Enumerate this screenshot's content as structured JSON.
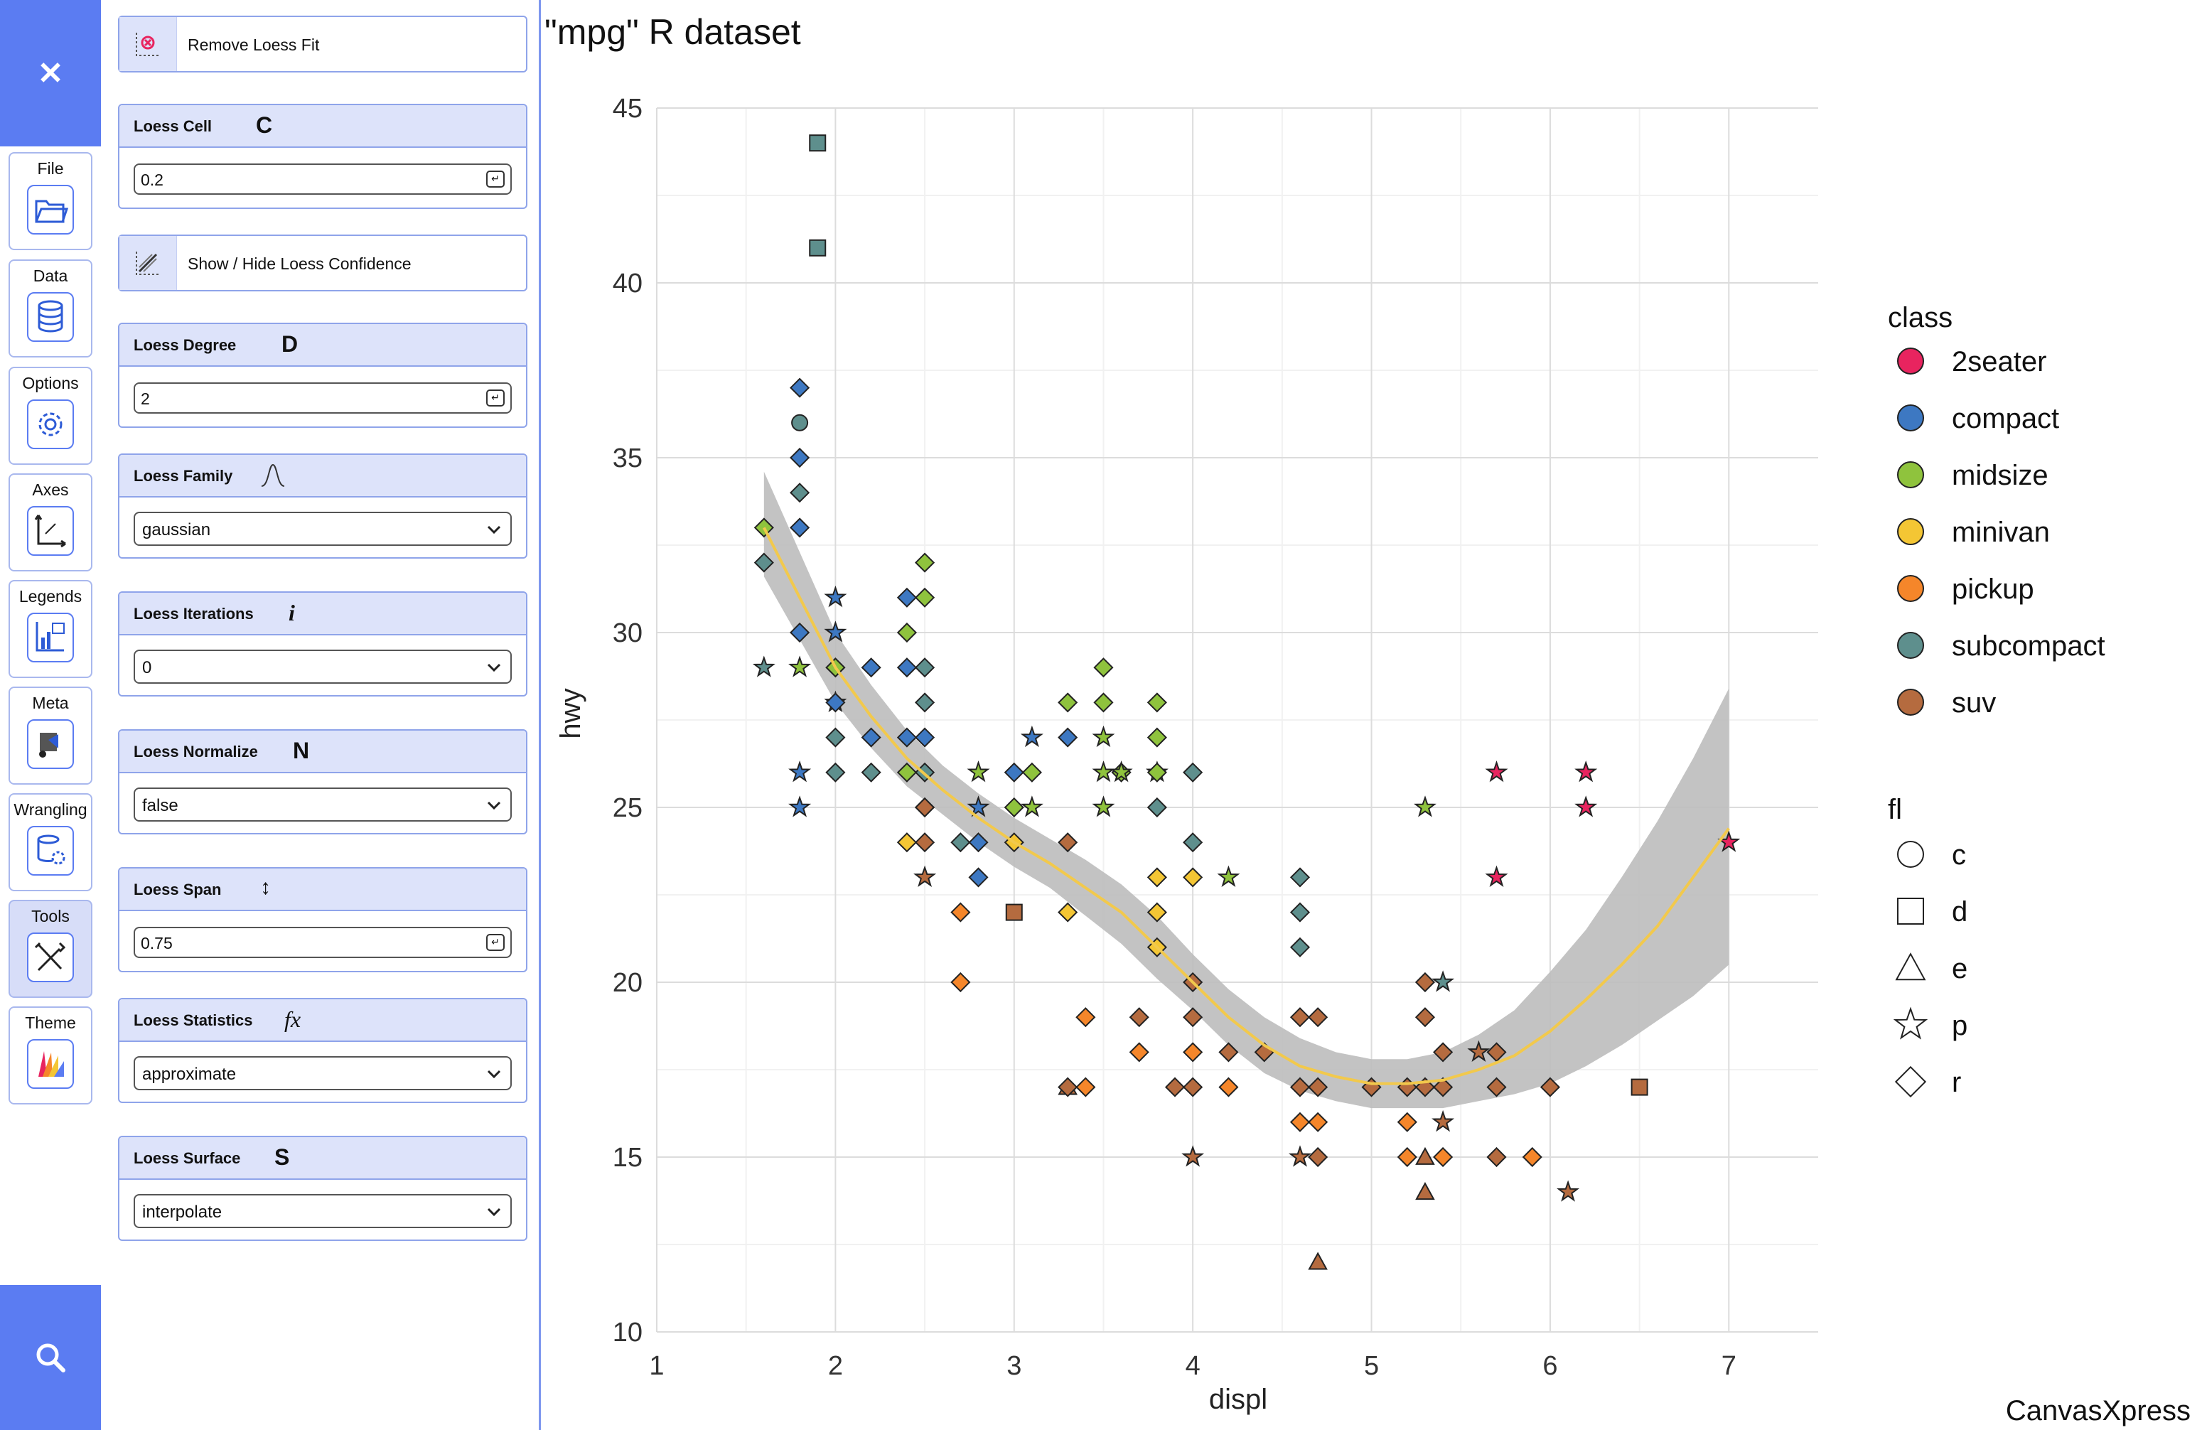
{
  "sidebar": {
    "close_icon": "close-icon",
    "search_icon": "search-icon",
    "items": [
      {
        "label": "File",
        "icon": "folder-icon",
        "active": false
      },
      {
        "label": "Data",
        "icon": "database-icon",
        "active": false
      },
      {
        "label": "Options",
        "icon": "gear-icon",
        "active": false
      },
      {
        "label": "Axes",
        "icon": "axes-icon",
        "active": false
      },
      {
        "label": "Legends",
        "icon": "legend-icon",
        "active": false
      },
      {
        "label": "Meta",
        "icon": "meta-icon",
        "active": false
      },
      {
        "label": "Wrangling",
        "icon": "wrangling-icon",
        "active": false
      },
      {
        "label": "Tools",
        "icon": "tools-icon",
        "active": true
      },
      {
        "label": "Theme",
        "icon": "theme-icon",
        "active": false
      }
    ]
  },
  "panel": {
    "remove_loess": "Remove Loess Fit",
    "show_hide_confidence": "Show / Hide Loess Confidence",
    "loess_cell": {
      "title": "Loess Cell",
      "glyph": "C",
      "value": "0.2"
    },
    "loess_degree": {
      "title": "Loess Degree",
      "glyph": "D",
      "value": "2"
    },
    "loess_family": {
      "title": "Loess Family",
      "value": "gaussian"
    },
    "loess_iterations": {
      "title": "Loess Iterations",
      "glyph": "i",
      "value": "0"
    },
    "loess_normalize": {
      "title": "Loess Normalize",
      "glyph": "N",
      "value": "false"
    },
    "loess_span": {
      "title": "Loess Span",
      "glyph": "↕",
      "value": "0.75"
    },
    "loess_statistics": {
      "title": "Loess Statistics",
      "glyph": "fx",
      "value": "approximate"
    },
    "loess_surface": {
      "title": "Loess Surface",
      "glyph": "S",
      "value": "interpolate"
    }
  },
  "chart_data": {
    "type": "scatter",
    "title": "\"mpg\" R dataset",
    "xlabel": "displ",
    "ylabel": "hwy",
    "xlim": [
      1,
      7.5
    ],
    "ylim": [
      10,
      45
    ],
    "xticks": [
      1,
      2,
      3,
      4,
      5,
      6,
      7
    ],
    "yticks": [
      10,
      15,
      20,
      25,
      30,
      35,
      40,
      45
    ],
    "grid": true,
    "watermark": "CanvasXpress",
    "legend_class_title": "class",
    "legend_fl_title": "fl",
    "classes": [
      {
        "name": "2seater",
        "color": "#e8245f"
      },
      {
        "name": "compact",
        "color": "#3d78c2"
      },
      {
        "name": "midsize",
        "color": "#8fc33d"
      },
      {
        "name": "minivan",
        "color": "#f4c634"
      },
      {
        "name": "pickup",
        "color": "#f5862a"
      },
      {
        "name": "subcompact",
        "color": "#5e8f8d"
      },
      {
        "name": "suv",
        "color": "#b56b3f"
      }
    ],
    "fuel_types": [
      {
        "name": "c",
        "shape": "circle"
      },
      {
        "name": "d",
        "shape": "square"
      },
      {
        "name": "e",
        "shape": "triangle"
      },
      {
        "name": "p",
        "shape": "star"
      },
      {
        "name": "r",
        "shape": "diamond"
      }
    ],
    "loess": {
      "color": "#f2c94c",
      "band_color": "#bdbdbd",
      "x": [
        1.6,
        1.8,
        2.0,
        2.2,
        2.4,
        2.6,
        2.8,
        3.0,
        3.2,
        3.4,
        3.6,
        3.8,
        4.0,
        4.2,
        4.4,
        4.6,
        4.8,
        5.0,
        5.2,
        5.4,
        5.6,
        5.8,
        6.0,
        6.2,
        6.4,
        6.6,
        6.8,
        7.0
      ],
      "y": [
        33.0,
        31.0,
        29.0,
        27.6,
        26.4,
        25.5,
        24.7,
        24.0,
        23.4,
        22.7,
        22.0,
        21.0,
        20.0,
        19.0,
        18.2,
        17.6,
        17.3,
        17.1,
        17.1,
        17.2,
        17.5,
        17.9,
        18.6,
        19.5,
        20.5,
        21.6,
        23.0,
        24.4
      ],
      "upper": [
        34.6,
        32.3,
        30.0,
        28.5,
        27.2,
        26.2,
        25.4,
        24.7,
        24.1,
        23.5,
        22.8,
        21.9,
        20.8,
        19.8,
        19.0,
        18.4,
        18.0,
        17.8,
        17.8,
        18.0,
        18.5,
        19.2,
        20.3,
        21.5,
        23.0,
        24.6,
        26.4,
        28.4
      ],
      "lower": [
        31.6,
        29.8,
        28.0,
        26.7,
        25.6,
        24.8,
        24.0,
        23.3,
        22.7,
        21.9,
        21.1,
        20.1,
        19.2,
        18.2,
        17.4,
        16.9,
        16.6,
        16.4,
        16.4,
        16.4,
        16.6,
        16.8,
        17.1,
        17.6,
        18.2,
        18.9,
        19.6,
        20.5
      ]
    },
    "points": [
      {
        "x": 1.9,
        "y": 44,
        "class": "subcompact",
        "fl": "d"
      },
      {
        "x": 1.9,
        "y": 41,
        "class": "subcompact",
        "fl": "d"
      },
      {
        "x": 1.8,
        "y": 37,
        "class": "compact",
        "fl": "r"
      },
      {
        "x": 1.8,
        "y": 36,
        "class": "subcompact",
        "fl": "c"
      },
      {
        "x": 1.8,
        "y": 35,
        "class": "compact",
        "fl": "r"
      },
      {
        "x": 1.8,
        "y": 34,
        "class": "subcompact",
        "fl": "r"
      },
      {
        "x": 1.8,
        "y": 33,
        "class": "compact",
        "fl": "r"
      },
      {
        "x": 1.6,
        "y": 33,
        "class": "midsize",
        "fl": "r"
      },
      {
        "x": 1.6,
        "y": 32,
        "class": "subcompact",
        "fl": "r"
      },
      {
        "x": 1.6,
        "y": 29,
        "class": "subcompact",
        "fl": "p"
      },
      {
        "x": 1.8,
        "y": 29,
        "class": "midsize",
        "fl": "p"
      },
      {
        "x": 1.8,
        "y": 30,
        "class": "compact",
        "fl": "r"
      },
      {
        "x": 1.8,
        "y": 26,
        "class": "compact",
        "fl": "p"
      },
      {
        "x": 1.8,
        "y": 25,
        "class": "compact",
        "fl": "p"
      },
      {
        "x": 2.0,
        "y": 31,
        "class": "compact",
        "fl": "p"
      },
      {
        "x": 2.0,
        "y": 30,
        "class": "compact",
        "fl": "p"
      },
      {
        "x": 2.0,
        "y": 29,
        "class": "compact",
        "fl": "r"
      },
      {
        "x": 2.0,
        "y": 29,
        "class": "midsize",
        "fl": "r"
      },
      {
        "x": 2.0,
        "y": 28,
        "class": "midsize",
        "fl": "p"
      },
      {
        "x": 2.0,
        "y": 28,
        "class": "compact",
        "fl": "r"
      },
      {
        "x": 2.0,
        "y": 27,
        "class": "subcompact",
        "fl": "r"
      },
      {
        "x": 2.0,
        "y": 26,
        "class": "subcompact",
        "fl": "r"
      },
      {
        "x": 2.2,
        "y": 29,
        "class": "compact",
        "fl": "r"
      },
      {
        "x": 2.2,
        "y": 27,
        "class": "compact",
        "fl": "r"
      },
      {
        "x": 2.2,
        "y": 26,
        "class": "subcompact",
        "fl": "r"
      },
      {
        "x": 2.4,
        "y": 31,
        "class": "compact",
        "fl": "r"
      },
      {
        "x": 2.4,
        "y": 30,
        "class": "midsize",
        "fl": "r"
      },
      {
        "x": 2.4,
        "y": 29,
        "class": "compact",
        "fl": "r"
      },
      {
        "x": 2.4,
        "y": 27,
        "class": "compact",
        "fl": "r"
      },
      {
        "x": 2.4,
        "y": 26,
        "class": "midsize",
        "fl": "r"
      },
      {
        "x": 2.4,
        "y": 24,
        "class": "minivan",
        "fl": "r"
      },
      {
        "x": 2.5,
        "y": 32,
        "class": "midsize",
        "fl": "r"
      },
      {
        "x": 2.5,
        "y": 31,
        "class": "midsize",
        "fl": "r"
      },
      {
        "x": 2.5,
        "y": 29,
        "class": "subcompact",
        "fl": "r"
      },
      {
        "x": 2.5,
        "y": 28,
        "class": "subcompact",
        "fl": "r"
      },
      {
        "x": 2.5,
        "y": 27,
        "class": "compact",
        "fl": "r"
      },
      {
        "x": 2.5,
        "y": 26,
        "class": "subcompact",
        "fl": "r"
      },
      {
        "x": 2.5,
        "y": 25,
        "class": "compact",
        "fl": "r"
      },
      {
        "x": 2.5,
        "y": 25,
        "class": "suv",
        "fl": "r"
      },
      {
        "x": 2.5,
        "y": 24,
        "class": "suv",
        "fl": "r"
      },
      {
        "x": 2.5,
        "y": 23,
        "class": "suv",
        "fl": "p"
      },
      {
        "x": 2.7,
        "y": 24,
        "class": "subcompact",
        "fl": "r"
      },
      {
        "x": 2.7,
        "y": 22,
        "class": "pickup",
        "fl": "r"
      },
      {
        "x": 2.7,
        "y": 20,
        "class": "pickup",
        "fl": "r"
      },
      {
        "x": 2.8,
        "y": 26,
        "class": "midsize",
        "fl": "p"
      },
      {
        "x": 2.8,
        "y": 25,
        "class": "compact",
        "fl": "p"
      },
      {
        "x": 2.8,
        "y": 24,
        "class": "compact",
        "fl": "r"
      },
      {
        "x": 2.8,
        "y": 23,
        "class": "compact",
        "fl": "r"
      },
      {
        "x": 3.0,
        "y": 26,
        "class": "compact",
        "fl": "r"
      },
      {
        "x": 3.0,
        "y": 25,
        "class": "midsize",
        "fl": "r"
      },
      {
        "x": 3.0,
        "y": 24,
        "class": "minivan",
        "fl": "r"
      },
      {
        "x": 3.0,
        "y": 22,
        "class": "suv",
        "fl": "d"
      },
      {
        "x": 3.1,
        "y": 27,
        "class": "compact",
        "fl": "p"
      },
      {
        "x": 3.1,
        "y": 26,
        "class": "midsize",
        "fl": "r"
      },
      {
        "x": 3.1,
        "y": 25,
        "class": "midsize",
        "fl": "p"
      },
      {
        "x": 3.3,
        "y": 28,
        "class": "midsize",
        "fl": "r"
      },
      {
        "x": 3.3,
        "y": 27,
        "class": "compact",
        "fl": "r"
      },
      {
        "x": 3.3,
        "y": 24,
        "class": "suv",
        "fl": "r"
      },
      {
        "x": 3.3,
        "y": 22,
        "class": "minivan",
        "fl": "r"
      },
      {
        "x": 3.3,
        "y": 17,
        "class": "suv",
        "fl": "e"
      },
      {
        "x": 3.3,
        "y": 17,
        "class": "suv",
        "fl": "r"
      },
      {
        "x": 3.4,
        "y": 19,
        "class": "pickup",
        "fl": "r"
      },
      {
        "x": 3.4,
        "y": 17,
        "class": "pickup",
        "fl": "r"
      },
      {
        "x": 3.5,
        "y": 29,
        "class": "midsize",
        "fl": "r"
      },
      {
        "x": 3.5,
        "y": 28,
        "class": "midsize",
        "fl": "r"
      },
      {
        "x": 3.5,
        "y": 27,
        "class": "midsize",
        "fl": "p"
      },
      {
        "x": 3.5,
        "y": 26,
        "class": "midsize",
        "fl": "p"
      },
      {
        "x": 3.5,
        "y": 25,
        "class": "midsize",
        "fl": "p"
      },
      {
        "x": 3.6,
        "y": 26,
        "class": "midsize",
        "fl": "r"
      },
      {
        "x": 3.6,
        "y": 26,
        "class": "midsize",
        "fl": "p"
      },
      {
        "x": 3.7,
        "y": 19,
        "class": "suv",
        "fl": "r"
      },
      {
        "x": 3.7,
        "y": 18,
        "class": "pickup",
        "fl": "r"
      },
      {
        "x": 3.8,
        "y": 28,
        "class": "midsize",
        "fl": "r"
      },
      {
        "x": 3.8,
        "y": 27,
        "class": "midsize",
        "fl": "r"
      },
      {
        "x": 3.8,
        "y": 26,
        "class": "midsize",
        "fl": "p"
      },
      {
        "x": 3.8,
        "y": 26,
        "class": "midsize",
        "fl": "r"
      },
      {
        "x": 3.8,
        "y": 25,
        "class": "subcompact",
        "fl": "r"
      },
      {
        "x": 3.8,
        "y": 23,
        "class": "minivan",
        "fl": "r"
      },
      {
        "x": 3.8,
        "y": 22,
        "class": "minivan",
        "fl": "r"
      },
      {
        "x": 3.8,
        "y": 21,
        "class": "minivan",
        "fl": "r"
      },
      {
        "x": 3.9,
        "y": 17,
        "class": "suv",
        "fl": "r"
      },
      {
        "x": 4.0,
        "y": 26,
        "class": "subcompact",
        "fl": "r"
      },
      {
        "x": 4.0,
        "y": 24,
        "class": "subcompact",
        "fl": "r"
      },
      {
        "x": 4.0,
        "y": 23,
        "class": "minivan",
        "fl": "r"
      },
      {
        "x": 4.0,
        "y": 20,
        "class": "suv",
        "fl": "r"
      },
      {
        "x": 4.0,
        "y": 19,
        "class": "suv",
        "fl": "r"
      },
      {
        "x": 4.0,
        "y": 18,
        "class": "pickup",
        "fl": "r"
      },
      {
        "x": 4.0,
        "y": 17,
        "class": "suv",
        "fl": "r"
      },
      {
        "x": 4.0,
        "y": 15,
        "class": "suv",
        "fl": "p"
      },
      {
        "x": 4.2,
        "y": 23,
        "class": "midsize",
        "fl": "p"
      },
      {
        "x": 4.2,
        "y": 18,
        "class": "suv",
        "fl": "r"
      },
      {
        "x": 4.2,
        "y": 17,
        "class": "pickup",
        "fl": "r"
      },
      {
        "x": 4.4,
        "y": 18,
        "class": "suv",
        "fl": "r"
      },
      {
        "x": 4.6,
        "y": 23,
        "class": "subcompact",
        "fl": "r"
      },
      {
        "x": 4.6,
        "y": 22,
        "class": "subcompact",
        "fl": "r"
      },
      {
        "x": 4.6,
        "y": 21,
        "class": "subcompact",
        "fl": "r"
      },
      {
        "x": 4.6,
        "y": 19,
        "class": "suv",
        "fl": "r"
      },
      {
        "x": 4.6,
        "y": 17,
        "class": "suv",
        "fl": "r"
      },
      {
        "x": 4.6,
        "y": 16,
        "class": "pickup",
        "fl": "r"
      },
      {
        "x": 4.6,
        "y": 15,
        "class": "suv",
        "fl": "p"
      },
      {
        "x": 4.7,
        "y": 19,
        "class": "suv",
        "fl": "r"
      },
      {
        "x": 4.7,
        "y": 17,
        "class": "suv",
        "fl": "r"
      },
      {
        "x": 4.7,
        "y": 16,
        "class": "pickup",
        "fl": "r"
      },
      {
        "x": 4.7,
        "y": 15,
        "class": "suv",
        "fl": "r"
      },
      {
        "x": 4.7,
        "y": 12,
        "class": "suv",
        "fl": "e"
      },
      {
        "x": 5.0,
        "y": 17,
        "class": "suv",
        "fl": "r"
      },
      {
        "x": 5.2,
        "y": 17,
        "class": "suv",
        "fl": "r"
      },
      {
        "x": 5.2,
        "y": 16,
        "class": "pickup",
        "fl": "r"
      },
      {
        "x": 5.2,
        "y": 15,
        "class": "pickup",
        "fl": "r"
      },
      {
        "x": 5.3,
        "y": 25,
        "class": "midsize",
        "fl": "p"
      },
      {
        "x": 5.3,
        "y": 20,
        "class": "suv",
        "fl": "r"
      },
      {
        "x": 5.3,
        "y": 19,
        "class": "suv",
        "fl": "r"
      },
      {
        "x": 5.3,
        "y": 17,
        "class": "suv",
        "fl": "r"
      },
      {
        "x": 5.3,
        "y": 15,
        "class": "suv",
        "fl": "e"
      },
      {
        "x": 5.3,
        "y": 14,
        "class": "suv",
        "fl": "e"
      },
      {
        "x": 5.4,
        "y": 20,
        "class": "subcompact",
        "fl": "p"
      },
      {
        "x": 5.4,
        "y": 18,
        "class": "suv",
        "fl": "r"
      },
      {
        "x": 5.4,
        "y": 17,
        "class": "suv",
        "fl": "r"
      },
      {
        "x": 5.4,
        "y": 16,
        "class": "suv",
        "fl": "p"
      },
      {
        "x": 5.4,
        "y": 15,
        "class": "pickup",
        "fl": "r"
      },
      {
        "x": 5.6,
        "y": 18,
        "class": "suv",
        "fl": "p"
      },
      {
        "x": 5.7,
        "y": 26,
        "class": "2seater",
        "fl": "p"
      },
      {
        "x": 5.7,
        "y": 23,
        "class": "2seater",
        "fl": "p"
      },
      {
        "x": 5.7,
        "y": 18,
        "class": "suv",
        "fl": "r"
      },
      {
        "x": 5.7,
        "y": 17,
        "class": "suv",
        "fl": "r"
      },
      {
        "x": 5.7,
        "y": 15,
        "class": "suv",
        "fl": "r"
      },
      {
        "x": 5.9,
        "y": 15,
        "class": "pickup",
        "fl": "r"
      },
      {
        "x": 6.0,
        "y": 17,
        "class": "suv",
        "fl": "r"
      },
      {
        "x": 6.1,
        "y": 14,
        "class": "suv",
        "fl": "p"
      },
      {
        "x": 6.2,
        "y": 26,
        "class": "2seater",
        "fl": "p"
      },
      {
        "x": 6.2,
        "y": 25,
        "class": "2seater",
        "fl": "p"
      },
      {
        "x": 6.5,
        "y": 17,
        "class": "suv",
        "fl": "d"
      },
      {
        "x": 7.0,
        "y": 24,
        "class": "2seater",
        "fl": "p"
      }
    ]
  }
}
